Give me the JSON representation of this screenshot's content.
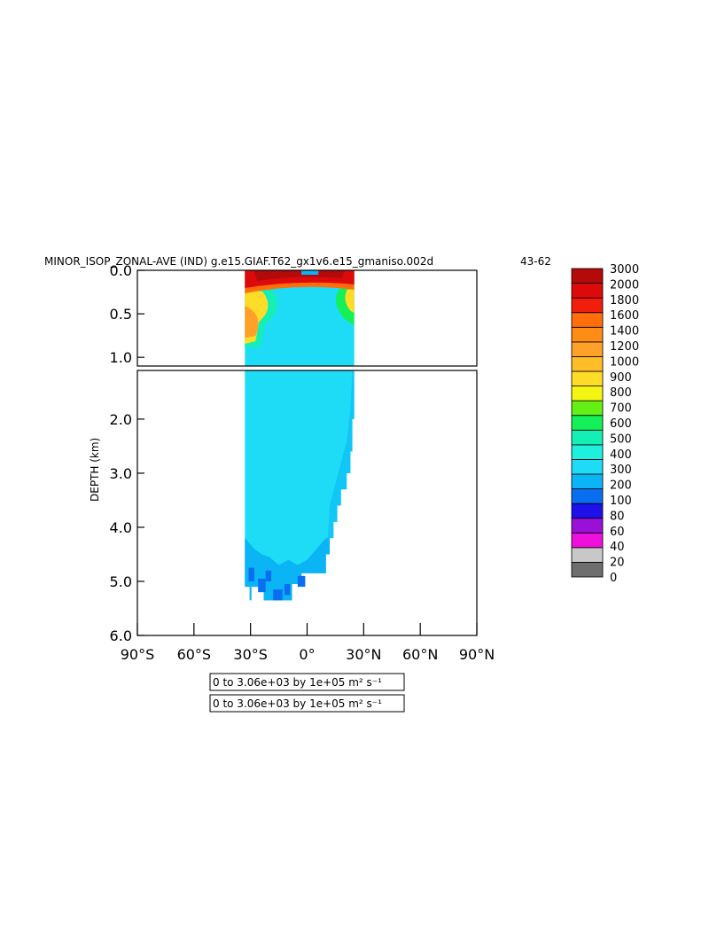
{
  "chart_data": {
    "type": "heatmap",
    "title": "MINOR_ISOP_ZONAL-AVE (IND) g.e15.GIAF.T62_gx1v6.e15_gmaniso.002d",
    "title_years": "43-62",
    "ylabel": "DEPTH (km)",
    "xlim": [
      -90,
      90
    ],
    "x_ticks": [
      -90,
      -60,
      -30,
      0,
      30,
      60,
      90
    ],
    "x_tick_labels": [
      "90°S",
      "60°S",
      "30°S",
      "0°",
      "30°N",
      "60°N",
      "90°N"
    ],
    "upper_panel": {
      "ylim": [
        0,
        1.1
      ],
      "y_ticks": [
        0,
        0.5,
        1.0
      ],
      "y_tick_labels": [
        "0.0",
        "0.5",
        "1.0"
      ]
    },
    "lower_panel": {
      "ylim": [
        1.1,
        6.0
      ],
      "y_ticks": [
        2,
        3,
        4,
        5,
        6
      ],
      "y_tick_labels": [
        "2.0",
        "3.0",
        "4.0",
        "5.0",
        "6.0"
      ]
    },
    "colorbar": {
      "levels": [
        "0",
        "20",
        "40",
        "60",
        "80",
        "100",
        "200",
        "300",
        "400",
        "500",
        "600",
        "700",
        "800",
        "900",
        "1000",
        "1200",
        "1400",
        "1600",
        "1800",
        "2000",
        "3000"
      ],
      "colors": [
        "#6e6e6e",
        "#c8c8c8",
        "#ee10dd",
        "#9a10d8",
        "#1e10e8",
        "#0a6ef0",
        "#0ab4f5",
        "#1edcf5",
        "#1ef0e0",
        "#14f0b4",
        "#14f05a",
        "#64f014",
        "#f5f514",
        "#ffdc28",
        "#ffbe28",
        "#ffa028",
        "#ff8c14",
        "#ff6e0a",
        "#f01e0a",
        "#dc0a0a",
        "#b40a0a"
      ]
    },
    "data_extent": {
      "lat_min": -33,
      "lat_max": 25,
      "max_depth_km": 5.4
    },
    "footer_labels": [
      "0 to 3.06e+03 by 1e+05 m² s⁻¹",
      "0 to 3.06e+03 by 1e+05 m² s⁻¹"
    ]
  }
}
